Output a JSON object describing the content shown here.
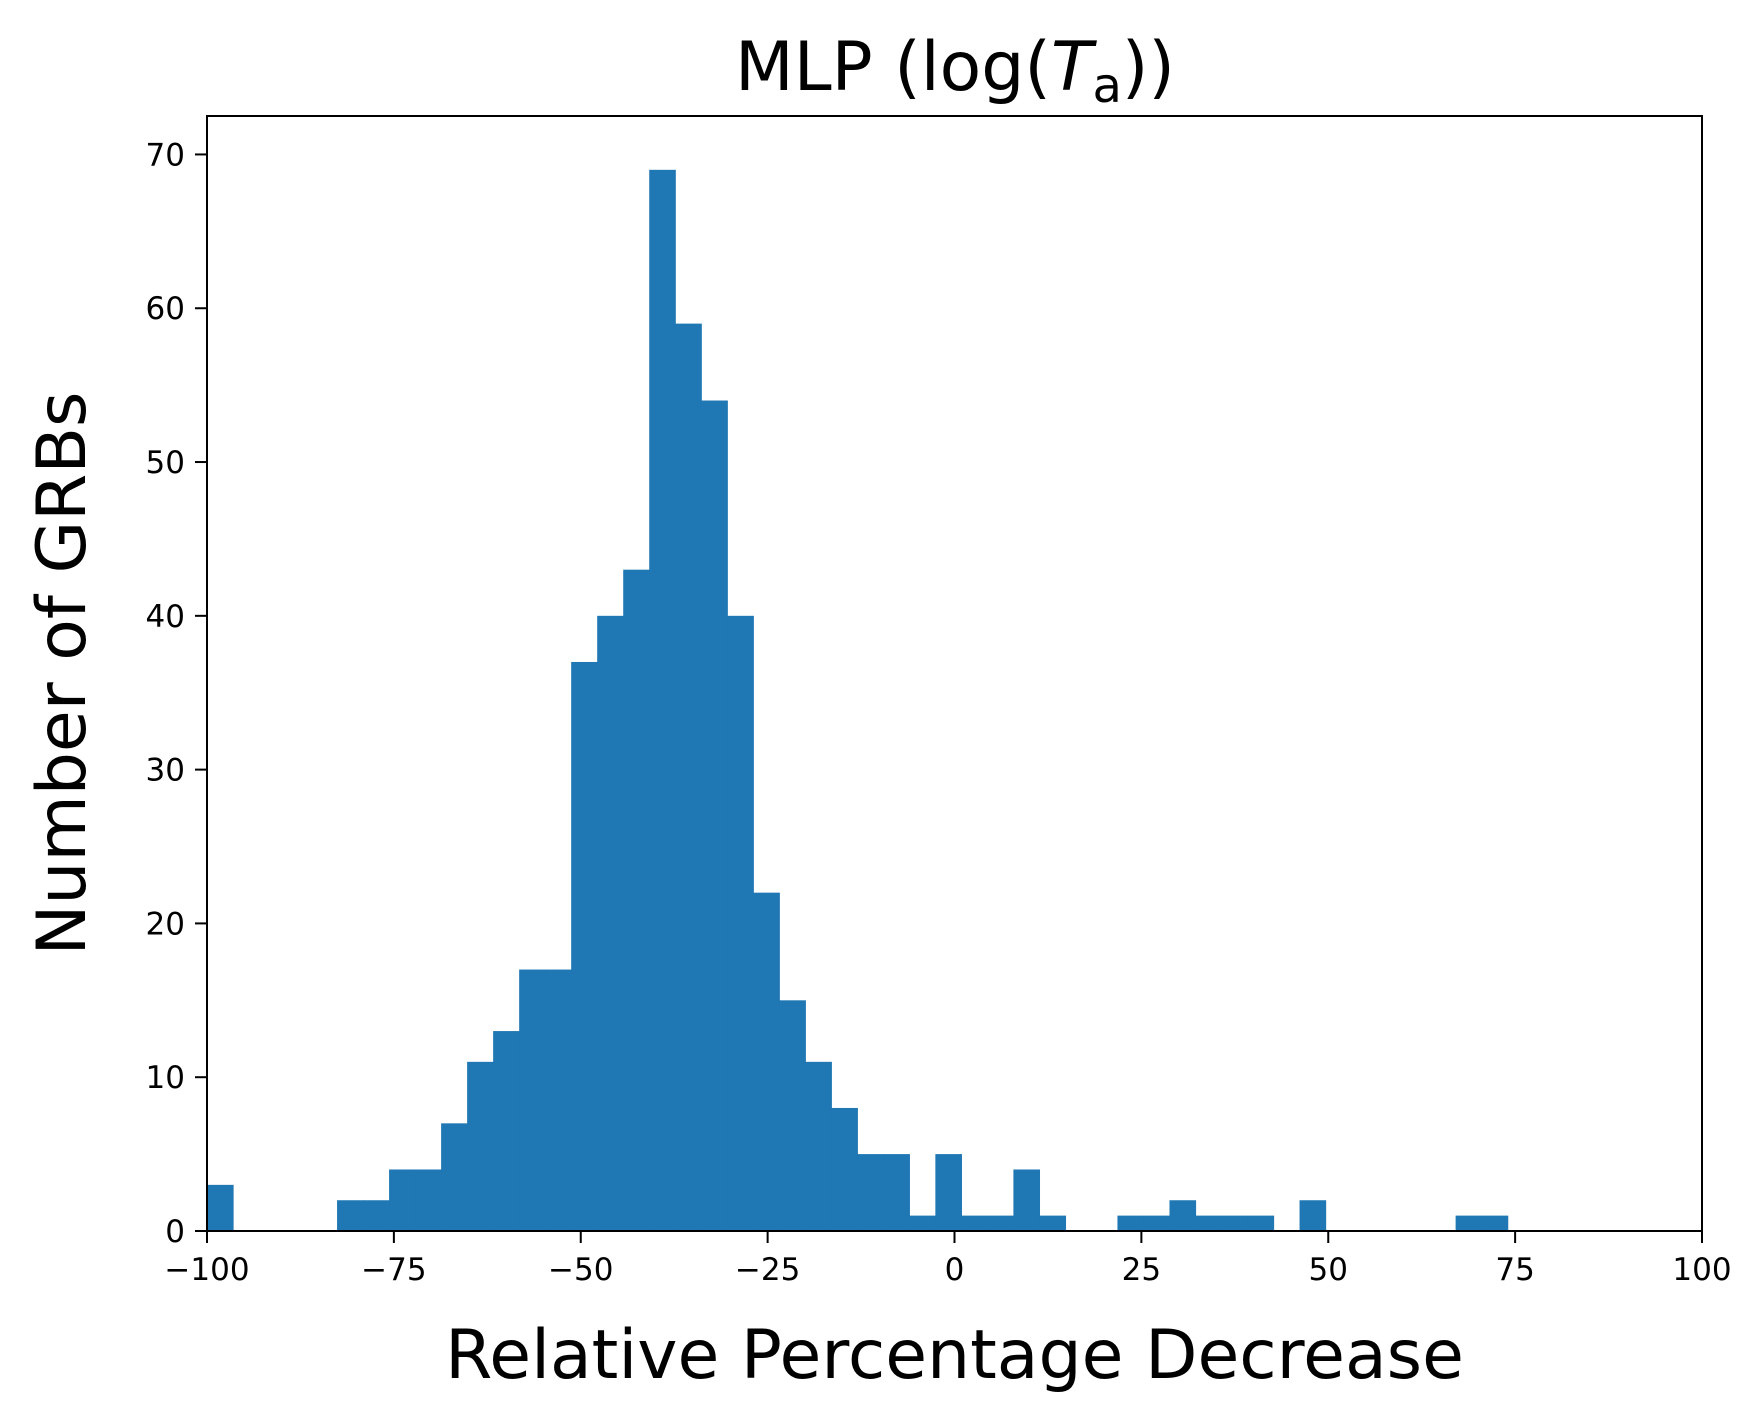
{
  "chart_data": {
    "type": "bar",
    "title": {
      "prefix": "MLP (log(",
      "symbol": "T",
      "subscript": "a",
      "suffix": "))"
    },
    "xlabel": "Relative Percentage Decrease",
    "ylabel": "Number of GRBs",
    "xlim": [
      -100,
      100
    ],
    "ylim": [
      0,
      72.5
    ],
    "xticks": [
      -100,
      -75,
      -50,
      -25,
      0,
      25,
      50,
      75,
      100
    ],
    "xtick_labels": [
      "−100",
      "−75",
      "−50",
      "−25",
      "0",
      "25",
      "50",
      "75",
      "100"
    ],
    "yticks": [
      0,
      10,
      20,
      30,
      40,
      50,
      60,
      70
    ],
    "ytick_labels": [
      "0",
      "10",
      "20",
      "30",
      "40",
      "50",
      "60",
      "70"
    ],
    "grid": false,
    "bar_color": "#1f77b4",
    "bin_start": -100,
    "bin_width": 3.48,
    "values": [
      3,
      0,
      0,
      0,
      0,
      2,
      2,
      4,
      4,
      7,
      11,
      13,
      17,
      17,
      37,
      40,
      43,
      69,
      59,
      54,
      40,
      22,
      15,
      11,
      8,
      5,
      5,
      1,
      5,
      1,
      1,
      4,
      1,
      0,
      0,
      1,
      1,
      2,
      1,
      1,
      1,
      0,
      2,
      0,
      0,
      0,
      0,
      0,
      1,
      1
    ]
  }
}
